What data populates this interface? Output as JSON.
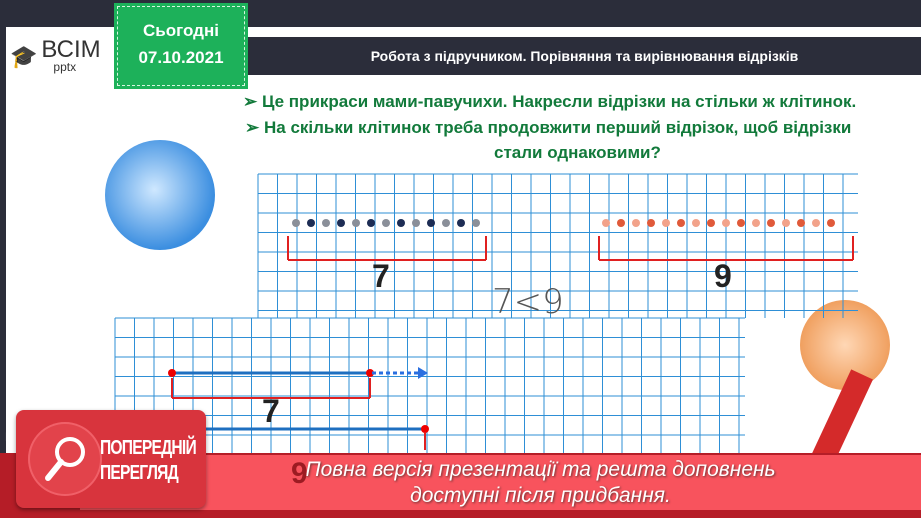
{
  "logo": {
    "main": "ВСІМ",
    "sub": "pptx"
  },
  "badge": {
    "line1": "Сьогодні",
    "line2": "07.10.2021"
  },
  "title": "Робота з підручником. Порівняння та вирівнювання відрізків",
  "bullets": [
    "Це прикраси мами-павучихи. Накресли відрізки на стільки ж клітинок.",
    "На скільки клітинок треба продовжити перший відрізок, щоб відрізки",
    "стали однаковими?"
  ],
  "bullet_marker": "➢",
  "top_counts": {
    "left": "7",
    "right": "9"
  },
  "comparison": "7<9",
  "bottom_counts": {
    "first": "7",
    "second": "9"
  },
  "side_letter": "П",
  "preview_label": [
    "ПОПЕРЕДНІЙ",
    "ПЕРЕГЛЯД"
  ],
  "notice": [
    "Повна версія презентації та решта доповнень",
    "доступні після придбання."
  ],
  "colors": {
    "green": "#1db15a",
    "dark": "#2b2d3a",
    "red": "#b51d27",
    "grid": "#2e8fd6"
  }
}
